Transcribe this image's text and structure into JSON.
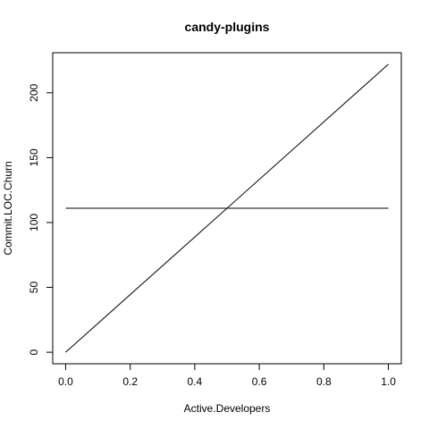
{
  "chart_data": {
    "type": "line",
    "title": "candy-plugins",
    "xlabel": "Active.Developers",
    "ylabel": "Commit.LOC.Churn",
    "xlim": [
      -0.04,
      1.04
    ],
    "ylim": [
      -8.88,
      230.88
    ],
    "x_ticks": [
      0.0,
      0.2,
      0.4,
      0.6,
      0.8,
      1.0
    ],
    "x_tick_labels": [
      "0.0",
      "0.2",
      "0.4",
      "0.6",
      "0.8",
      "1.0"
    ],
    "y_ticks": [
      0,
      50,
      100,
      150,
      200
    ],
    "y_tick_labels": [
      "0",
      "50",
      "100",
      "150",
      "200"
    ],
    "grid": false,
    "series": [
      {
        "x": [
          0,
          1
        ],
        "y": [
          0,
          222
        ],
        "color": "#000000"
      },
      {
        "x": [
          0,
          1
        ],
        "y": [
          111,
          111
        ],
        "color": "#000000"
      }
    ]
  }
}
